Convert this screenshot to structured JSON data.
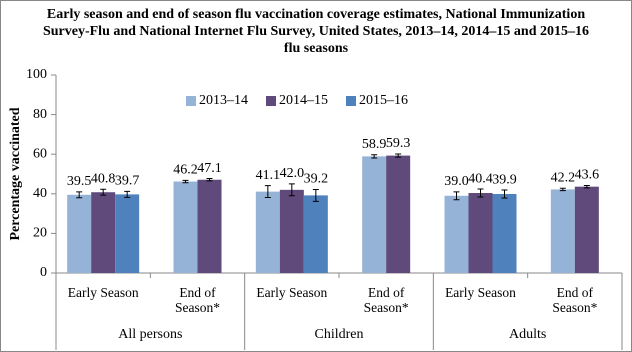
{
  "chart_data": {
    "type": "bar",
    "title": "Early season and end of season flu vaccination coverage estimates, National Immunization Survey-Flu and National Internet Flu Survey, United States, 2013–14, 2014–15 and 2015–16 flu seasons",
    "y_label": "Percentage vaccinated",
    "categories": [
      "Early Season",
      "End of Season*",
      "Early Season",
      "End of Season*",
      "Early Season",
      "End of Season*"
    ],
    "groups": [
      "All persons",
      "Children",
      "Adults"
    ],
    "series": [
      {
        "name": "2013–14",
        "color": "#95b3d7",
        "values": [
          39.5,
          46.2,
          41.1,
          58.9,
          39.0,
          42.2
        ],
        "value_labels": [
          "39.5",
          "46.2",
          "41.1",
          "58.9",
          "39.0",
          "42.2"
        ],
        "errors": [
          1.5,
          0.6,
          3.0,
          0.8,
          2.0,
          0.6
        ]
      },
      {
        "name": "2014–15",
        "color": "#604a7b",
        "values": [
          40.8,
          47.1,
          42.0,
          59.3,
          40.4,
          43.6
        ],
        "value_labels": [
          "40.8",
          "47.1",
          "42.0",
          "59.3",
          "40.4",
          "43.6"
        ],
        "errors": [
          1.5,
          0.6,
          3.0,
          0.8,
          2.0,
          0.6
        ]
      },
      {
        "name": "2015–16",
        "color": "#4f81bd",
        "values": [
          39.7,
          null,
          39.2,
          null,
          39.9,
          null
        ],
        "value_labels": [
          "39.7",
          null,
          "39.2",
          null,
          "39.9",
          null
        ],
        "errors": [
          1.5,
          null,
          3.0,
          null,
          2.0,
          null
        ]
      }
    ],
    "ylim": [
      0,
      100
    ],
    "yticks": [
      0,
      20,
      40,
      60,
      80,
      100
    ],
    "grid": false,
    "legend": "top"
  }
}
